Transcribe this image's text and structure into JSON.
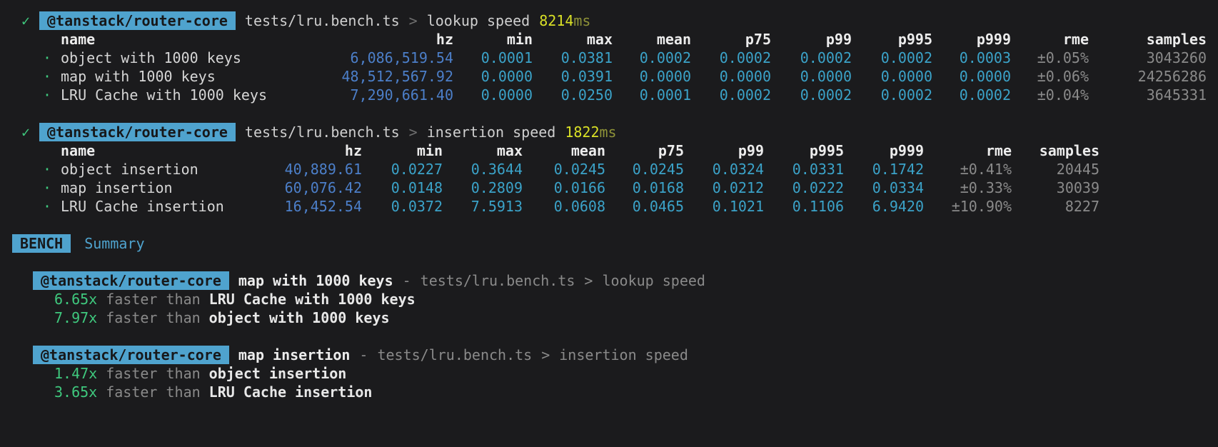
{
  "glyphs": {
    "check": "✓",
    "bullet": "·"
  },
  "colors": {
    "background": "#1b1b1d",
    "badge_bg": "#4fa3ce",
    "green": "#3fc97e",
    "yellow": "#d9e026",
    "yellow_dim": "#8f9338",
    "hz_blue": "#4c7fc9",
    "value_cyan": "#3ba3c9",
    "dim_gray": "#8a8a8a"
  },
  "suites": [
    {
      "package": "@tanstack/router-core",
      "file": "tests/lru.bench.ts",
      "separator": ">",
      "group": "lookup speed",
      "duration": "8214",
      "duration_unit": "ms",
      "columns": [
        "name",
        "hz",
        "min",
        "max",
        "mean",
        "p75",
        "p99",
        "p995",
        "p999",
        "rme",
        "samples"
      ],
      "rows": [
        {
          "name": "object with 1000 keys",
          "hz": "6,086,519.54",
          "min": "0.0001",
          "max": "0.0381",
          "mean": "0.0002",
          "p75": "0.0002",
          "p99": "0.0002",
          "p995": "0.0002",
          "p999": "0.0003",
          "rme": "±0.05%",
          "samples": "3043260"
        },
        {
          "name": "map with 1000 keys",
          "hz": "48,512,567.92",
          "min": "0.0000",
          "max": "0.0391",
          "mean": "0.0000",
          "p75": "0.0000",
          "p99": "0.0000",
          "p995": "0.0000",
          "p999": "0.0000",
          "rme": "±0.06%",
          "samples": "24256286"
        },
        {
          "name": "LRU Cache with 1000 keys",
          "hz": "7,290,661.40",
          "min": "0.0000",
          "max": "0.0250",
          "mean": "0.0001",
          "p75": "0.0002",
          "p99": "0.0002",
          "p995": "0.0002",
          "p999": "0.0002",
          "rme": "±0.04%",
          "samples": "3645331"
        }
      ]
    },
    {
      "package": "@tanstack/router-core",
      "file": "tests/lru.bench.ts",
      "separator": ">",
      "group": "insertion speed",
      "duration": "1822",
      "duration_unit": "ms",
      "columns": [
        "name",
        "hz",
        "min",
        "max",
        "mean",
        "p75",
        "p99",
        "p995",
        "p999",
        "rme",
        "samples"
      ],
      "rows": [
        {
          "name": "object insertion",
          "hz": "40,889.61",
          "min": "0.0227",
          "max": "0.3644",
          "mean": "0.0245",
          "p75": "0.0245",
          "p99": "0.0324",
          "p995": "0.0331",
          "p999": "0.1742",
          "rme": "±0.41%",
          "samples": "20445"
        },
        {
          "name": "map insertion",
          "hz": "60,076.42",
          "min": "0.0148",
          "max": "0.2809",
          "mean": "0.0166",
          "p75": "0.0168",
          "p99": "0.0212",
          "p995": "0.0222",
          "p999": "0.0334",
          "rme": "±0.33%",
          "samples": "30039"
        },
        {
          "name": "LRU Cache insertion",
          "hz": "16,452.54",
          "min": "0.0372",
          "max": "7.5913",
          "mean": "0.0608",
          "p75": "0.0465",
          "p99": "0.1021",
          "p995": "0.1106",
          "p999": "6.9420",
          "rme": "±10.90%",
          "samples": "8227"
        }
      ]
    }
  ],
  "summary": {
    "badge": "BENCH",
    "title": "Summary",
    "groups": [
      {
        "package": "@tanstack/router-core",
        "winner": "map with 1000 keys",
        "dash": "-",
        "file": "tests/lru.bench.ts",
        "separator": ">",
        "group": "lookup speed",
        "comparisons": [
          {
            "factor": "6.65x",
            "label": "faster than",
            "target": "LRU Cache with 1000 keys"
          },
          {
            "factor": "7.97x",
            "label": "faster than",
            "target": "object with 1000 keys"
          }
        ]
      },
      {
        "package": "@tanstack/router-core",
        "winner": "map insertion",
        "dash": "-",
        "file": "tests/lru.bench.ts",
        "separator": ">",
        "group": "insertion speed",
        "comparisons": [
          {
            "factor": "1.47x",
            "label": "faster than",
            "target": "object insertion"
          },
          {
            "factor": "3.65x",
            "label": "faster than",
            "target": "LRU Cache insertion"
          }
        ]
      }
    ]
  }
}
